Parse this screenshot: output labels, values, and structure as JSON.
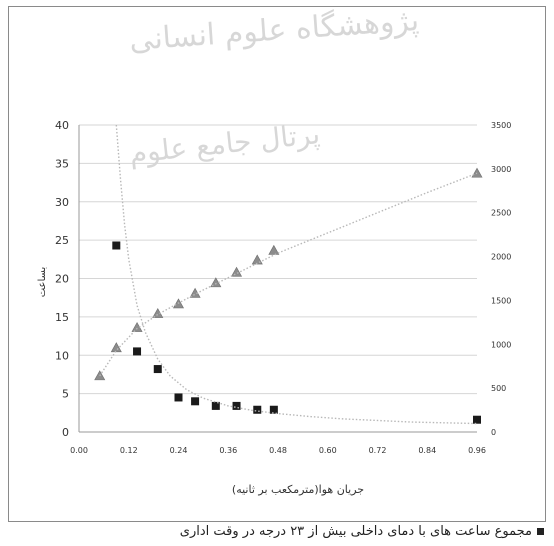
{
  "watermark": {
    "line1": "پژوهشگاه علوم انسانی",
    "line2": "پرتال جامع علوم"
  },
  "chart_data": {
    "type": "scatter",
    "xlabel": "جریان هوا(مترمکعب بر ثانیه)",
    "ylabel_left": "بساعت",
    "x_ticks": [
      "0.00",
      "0.12",
      "0.24",
      "0.36",
      "0.48",
      "0.60",
      "0.72",
      "0.84",
      "0.96"
    ],
    "x_tick_values": [
      0,
      0.12,
      0.24,
      0.36,
      0.48,
      0.6,
      0.72,
      0.84,
      0.96
    ],
    "xlim": [
      0,
      0.96
    ],
    "y_left_ticks": [
      "0",
      "5",
      "10",
      "15",
      "20",
      "25",
      "30",
      "35",
      "40"
    ],
    "y_left_tick_values": [
      0,
      5,
      10,
      15,
      20,
      25,
      30,
      35,
      40
    ],
    "ylim_left": [
      0,
      40
    ],
    "y_right_ticks": [
      "0",
      "500",
      "1000",
      "1500",
      "2000",
      "2500",
      "3000",
      "3500"
    ],
    "y_right_tick_values": [
      0,
      500,
      1000,
      1500,
      2000,
      2500,
      3000,
      3500
    ],
    "ylim_right": [
      0,
      3500
    ],
    "grid": "horizontal",
    "legend_position": "bottom",
    "series": [
      {
        "name": "مجموع ساعت های با دمای داخلی بیش از ۲۳ درجه در وقت اداری",
        "axis": "left",
        "marker": "square",
        "x": [
          0.09,
          0.14,
          0.19,
          0.24,
          0.28,
          0.33,
          0.38,
          0.43,
          0.47,
          0.96
        ],
        "y": [
          24.3,
          10.5,
          8.2,
          4.5,
          4.0,
          3.4,
          3.4,
          2.9,
          2.9,
          1.6
        ]
      },
      {
        "axis": "right",
        "marker": "triangle",
        "x": [
          0.05,
          0.09,
          0.14,
          0.19,
          0.24,
          0.28,
          0.33,
          0.38,
          0.43,
          0.47,
          0.96
        ],
        "y": [
          640,
          960,
          1190,
          1350,
          1460,
          1580,
          1700,
          1820,
          1960,
          2070,
          2950
        ]
      },
      {
        "axis": "left",
        "style": "dotted-trend",
        "x": [
          0.09,
          0.1,
          0.11,
          0.12,
          0.14,
          0.16,
          0.19,
          0.22,
          0.26,
          0.3,
          0.36,
          0.42,
          0.48,
          0.56,
          0.64,
          0.72,
          0.8,
          0.88,
          0.96
        ],
        "y": [
          40,
          33,
          27,
          22.5,
          16.5,
          13,
          9.5,
          7.3,
          5.5,
          4.4,
          3.4,
          2.8,
          2.4,
          2.0,
          1.7,
          1.5,
          1.3,
          1.2,
          1.1
        ]
      },
      {
        "axis": "right",
        "style": "dotted-trend",
        "x": [
          0.05,
          0.09,
          0.14,
          0.19,
          0.24,
          0.3,
          0.36,
          0.42,
          0.48,
          0.6,
          0.72,
          0.84,
          0.96
        ],
        "y": [
          640,
          930,
          1180,
          1340,
          1470,
          1620,
          1760,
          1900,
          2040,
          2270,
          2500,
          2730,
          2950
        ]
      }
    ]
  }
}
